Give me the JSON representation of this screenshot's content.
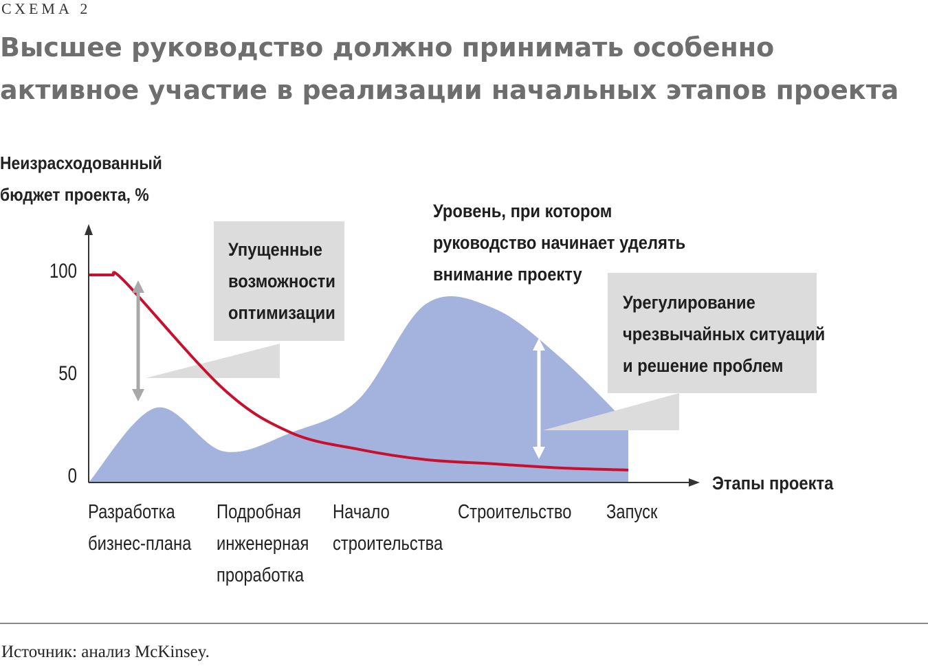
{
  "header": {
    "schema_label": "СХЕМА 2",
    "title": "Высшее руководство должно принимать особенно активное участие в реализации начальных этапов проекта"
  },
  "chart_data": {
    "type": "area",
    "ylabel_line1": "Неизрасходованный",
    "ylabel_line2": "бюджет проекта, %",
    "xlabel": "Этапы проекта",
    "ylim": [
      0,
      100
    ],
    "yticks": [
      "100",
      "50",
      "0"
    ],
    "categories": [
      [
        "Разработка",
        "бизнес-плана"
      ],
      [
        "Подробная",
        "инженерная",
        "проработка"
      ],
      [
        "Начало",
        "строительства"
      ],
      [
        "Строительство"
      ],
      [
        "Запуск"
      ]
    ],
    "x": [
      0,
      0.5,
      1,
      1.5,
      2,
      2.5,
      3,
      3.5,
      4
    ],
    "series": [
      {
        "values": [
          100,
          96,
          45,
          24,
          16,
          11,
          9,
          7,
          6
        ],
        "color": "#c8102e"
      },
      {
        "values": [
          0,
          36,
          15,
          24,
          40,
          86,
          84,
          60,
          28
        ],
        "color": "#a3b3de"
      }
    ],
    "annotations": {
      "missed": [
        "Упущенные",
        "возможности",
        "оптимизации"
      ],
      "level": [
        "Уровень, при котором",
        "руководство начинает уделять",
        "внимание проекту"
      ],
      "crisis": [
        "Урегулирование",
        "чрезвычайных ситуаций",
        "и решение проблем"
      ]
    },
    "grid": false
  },
  "footer": {
    "source": "Источник: анализ McKinsey."
  }
}
